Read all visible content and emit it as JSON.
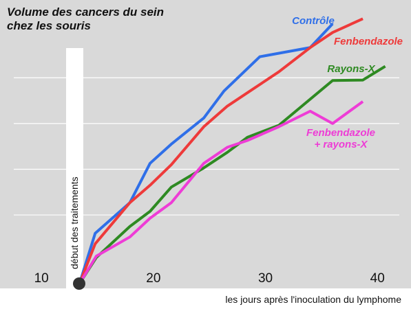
{
  "chart_data": {
    "type": "line",
    "title": "Volume des cancers du sein chez les souris",
    "x_label": "les jours après l'inoculation du lymphome",
    "annotation": "début des traitements",
    "xlim": [
      6.3,
      43
    ],
    "xticks": [
      10,
      20,
      30,
      40
    ],
    "ylim": [
      0,
      6.2
    ],
    "yticks": [
      1.5,
      2.5,
      3.5,
      4.5
    ],
    "grid": true,
    "series": [
      {
        "name": "Contrôle",
        "color": "#2f6fe8",
        "x": [
          13.4,
          14.8,
          17.9,
          19.7,
          21.6,
          24.5,
          26.3,
          29.5,
          34,
          36
        ],
        "values": [
          0,
          1.1,
          1.77,
          2.63,
          3.05,
          3.62,
          4.21,
          4.96,
          5.16,
          5.68
        ]
      },
      {
        "name": "Fenbendazole",
        "color": "#ee3a3a",
        "x": [
          13.4,
          14.8,
          17.9,
          19.7,
          21.6,
          24.5,
          26.6,
          31.2,
          34,
          36,
          38.7
        ],
        "values": [
          0,
          0.87,
          1.77,
          2.15,
          2.6,
          3.43,
          3.88,
          4.63,
          5.16,
          5.49,
          5.79
        ]
      },
      {
        "name": "Rayons-X",
        "color": "#2e8a22",
        "x": [
          13.4,
          14.9,
          17.9,
          19.7,
          21.6,
          24.5,
          26.6,
          28.4,
          31.2,
          36,
          38.7,
          40.7
        ],
        "values": [
          0,
          0.57,
          1.25,
          1.58,
          2.11,
          2.53,
          2.87,
          3.2,
          3.46,
          4.44,
          4.45,
          4.75
        ]
      },
      {
        "name": "Fenbendazole + rayons-X",
        "color": "#ee3cd6",
        "x": [
          13.4,
          14.9,
          17.9,
          19.7,
          21.6,
          24.5,
          26.6,
          28.4,
          31.2,
          34,
          36,
          38.7
        ],
        "values": [
          0,
          0.6,
          1.02,
          1.43,
          1.77,
          2.63,
          2.98,
          3.13,
          3.43,
          3.77,
          3.5,
          3.98
        ]
      }
    ]
  }
}
